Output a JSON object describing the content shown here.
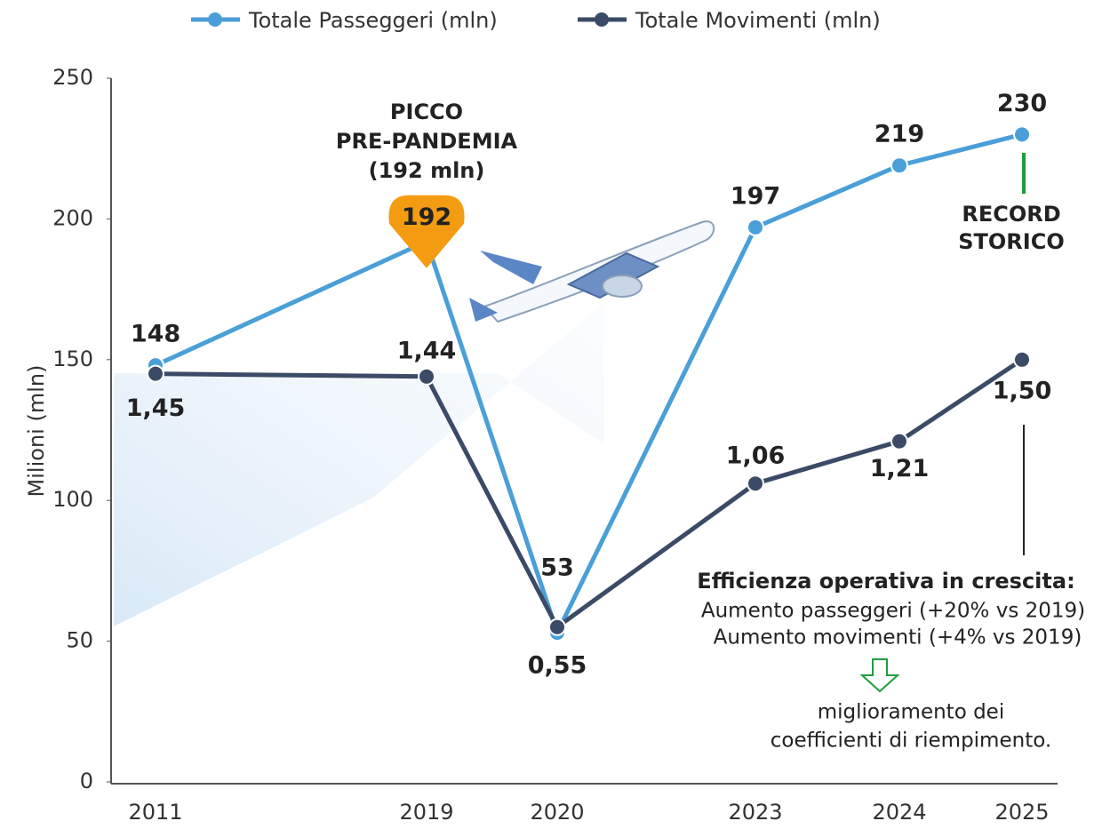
{
  "chart_data": {
    "type": "line",
    "y_label": "Milioni (mln)",
    "categories": [
      "2011",
      "2019",
      "2020",
      "2023",
      "2024",
      "2025"
    ],
    "series": [
      {
        "name": "Totale Passeggeri (mln)",
        "color": "#4a9fd8",
        "values": [
          148,
          192,
          53,
          197,
          219,
          230
        ]
      },
      {
        "name": "Totale Movimenti (mln)",
        "color": "#3b4a66",
        "axis": "y2",
        "values": [
          1.45,
          1.44,
          0.55,
          1.06,
          1.21,
          1.5
        ],
        "value_labels": [
          "1,45",
          "1,44",
          "0,55",
          "1,06",
          "1,21",
          "1,50"
        ]
      }
    ],
    "ylim": [
      0,
      250
    ],
    "yticks": [
      0,
      50,
      100,
      150,
      200,
      250
    ],
    "y2lim": [
      0,
      2.5
    ],
    "grid": false,
    "highlight_color": "#f39c12",
    "annotations": {
      "peak": [
        "PICCO",
        "PRE-PANDEMIA",
        "(192 mln)"
      ],
      "record": [
        "RECORD",
        "STORICO"
      ],
      "record_color": "#1e9e3e",
      "efficiency_title": "Efficienza operativa in crescita:",
      "efficiency_lines": [
        "Aumento passeggeri (+20% vs 2019)",
        "Aumento movimenti (+4% vs 2019)"
      ],
      "conclusion": [
        "miglioramento dei",
        "coefficienti di riempimento."
      ]
    }
  }
}
